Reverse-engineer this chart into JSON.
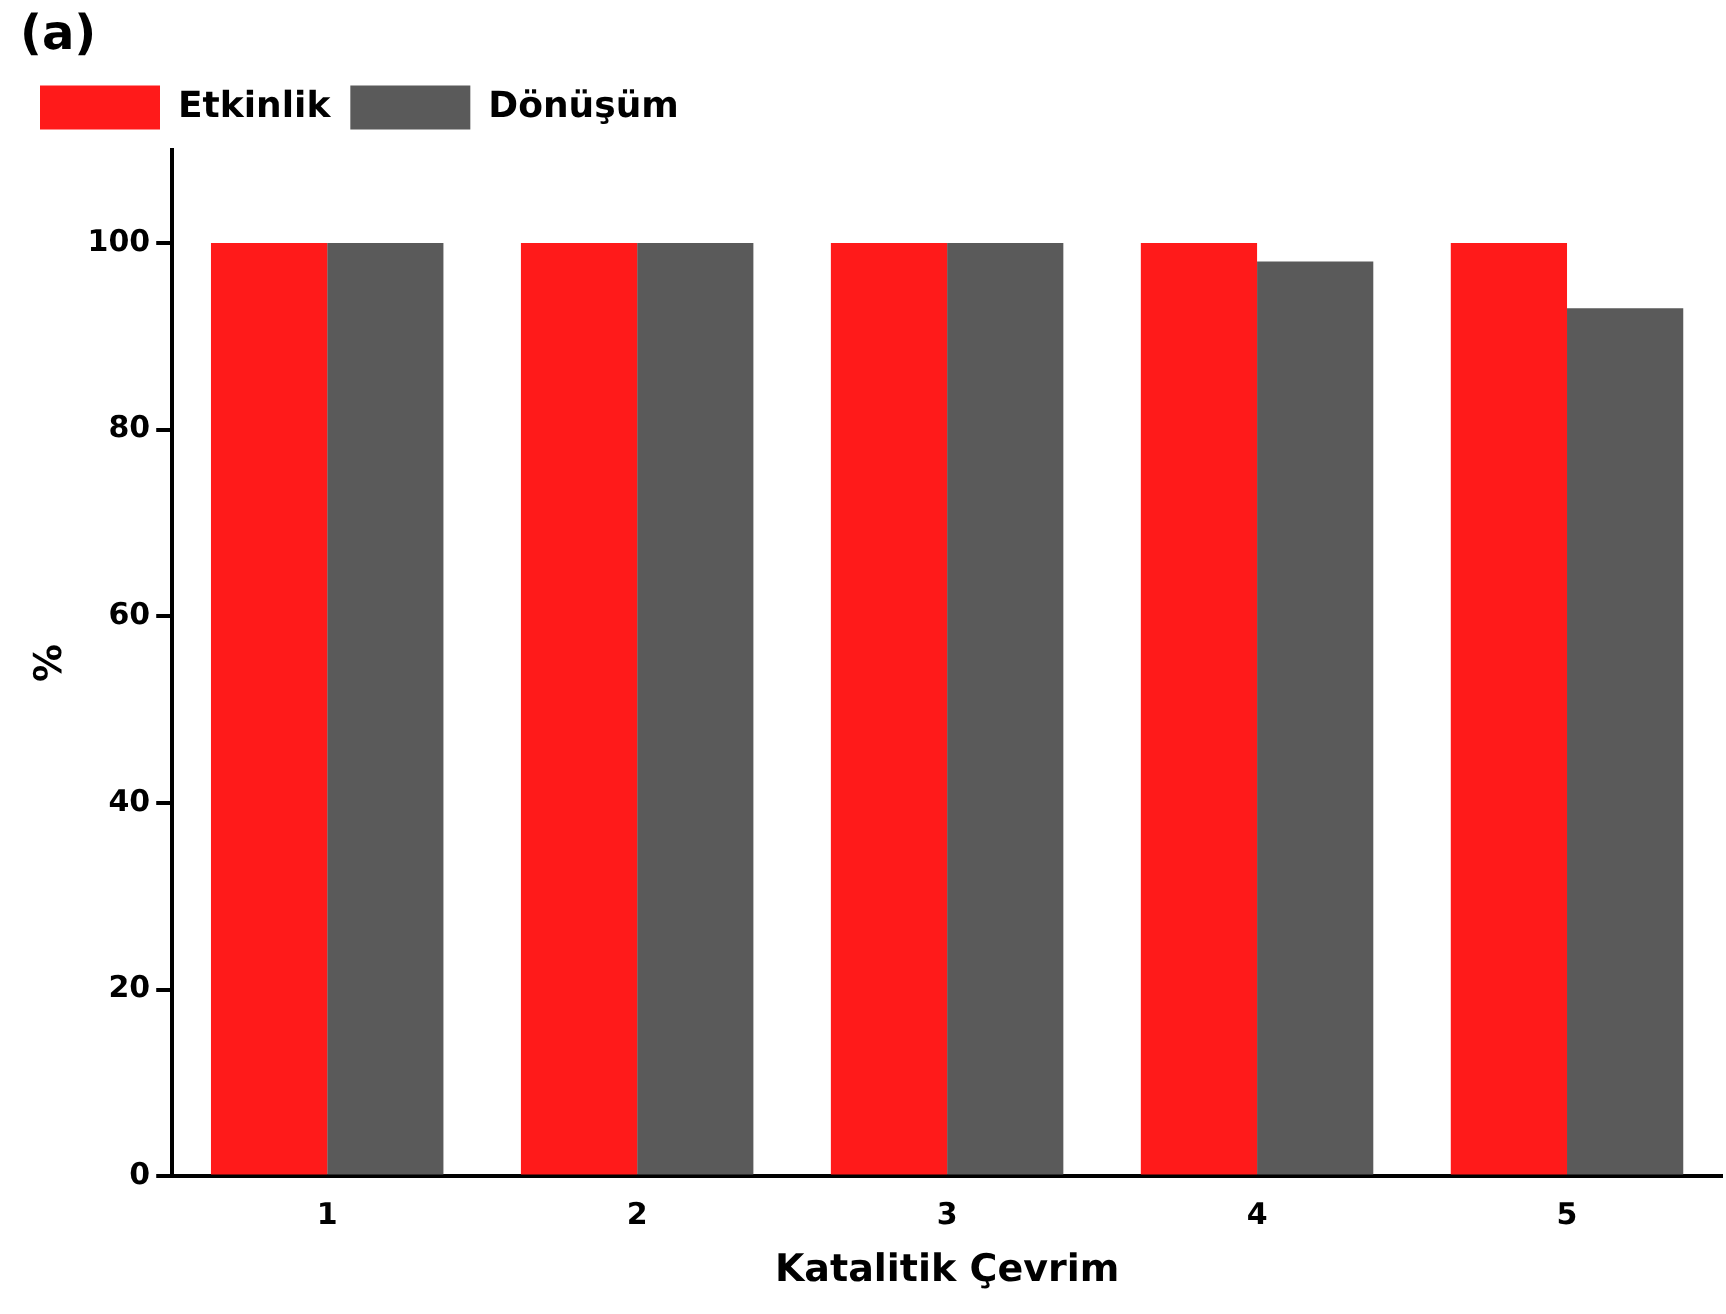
{
  "chart_data": {
    "type": "bar",
    "title": "(a)",
    "xlabel": "Katalitik Çevrim",
    "ylabel": "%",
    "categories": [
      "1",
      "2",
      "3",
      "4",
      "5"
    ],
    "series": [
      {
        "name": "Etkinlik",
        "color": "#ff1a1a",
        "values": [
          100,
          100,
          100,
          100,
          100
        ]
      },
      {
        "name": "Dönüşüm",
        "color": "#5a5a5a",
        "values": [
          100,
          100,
          100,
          98,
          93
        ]
      }
    ],
    "ylim": [
      0,
      110
    ],
    "yticks": [
      0,
      20,
      40,
      60,
      80,
      100
    ],
    "grid": false,
    "legend": "top left"
  }
}
